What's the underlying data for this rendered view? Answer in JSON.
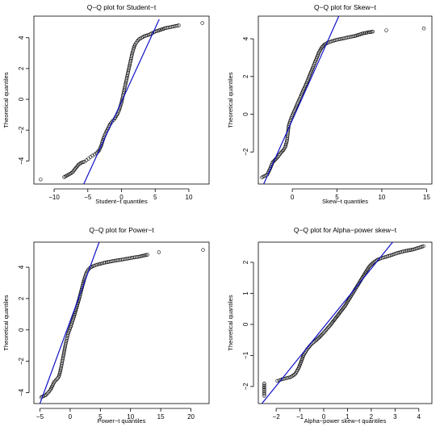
{
  "chart_data": [
    {
      "type": "scatter",
      "title": "Q−Q plot for  Student−t",
      "xlabel": "Student−t quantiles",
      "ylabel": "Theoretical quantiles",
      "xlim": [
        -13,
        13
      ],
      "ylim": [
        -5.5,
        5.4
      ],
      "xticks": [
        -10,
        -5,
        0,
        5,
        10
      ],
      "yticks": [
        -4,
        -2,
        0,
        2,
        4
      ],
      "xtick_labels": [
        "−10",
        "−5",
        "0",
        "5",
        "10"
      ],
      "ytick_labels": [
        "−4",
        "−2",
        "0",
        "2",
        "4"
      ],
      "reference_line": {
        "x": [
          -5.6,
          5.6
        ],
        "y": [
          -5.5,
          5.2
        ]
      },
      "points": [
        [
          -12,
          -5.2
        ],
        [
          -8.5,
          -5.05
        ],
        [
          -7.3,
          -4.75
        ],
        [
          -6.4,
          -4.25
        ],
        [
          -5.9,
          -4.1
        ],
        [
          -5.5,
          -4.05
        ],
        [
          -5.2,
          -3.95
        ],
        [
          -4.9,
          -3.85
        ],
        [
          -4.6,
          -3.75
        ],
        [
          -4.3,
          -3.65
        ],
        [
          -4.0,
          -3.58
        ],
        [
          -3.7,
          -3.5
        ],
        [
          -3.3,
          -3.3
        ],
        [
          -3.0,
          -3.0
        ],
        [
          -2.8,
          -2.7
        ],
        [
          -2.6,
          -2.45
        ],
        [
          -2.4,
          -2.25
        ],
        [
          -2.2,
          -2.05
        ],
        [
          -2.0,
          -1.9
        ],
        [
          -1.8,
          -1.7
        ],
        [
          -1.6,
          -1.55
        ],
        [
          -1.4,
          -1.45
        ],
        [
          -1.2,
          -1.35
        ],
        [
          -1.0,
          -1.25
        ],
        [
          -0.8,
          -1.1
        ],
        [
          -0.6,
          -0.95
        ],
        [
          -0.4,
          -0.75
        ],
        [
          -0.2,
          -0.5
        ],
        [
          0.0,
          -0.2
        ],
        [
          0.2,
          0.2
        ],
        [
          0.4,
          0.6
        ],
        [
          0.6,
          1.0
        ],
        [
          0.8,
          1.4
        ],
        [
          1.0,
          1.8
        ],
        [
          1.2,
          2.2
        ],
        [
          1.4,
          2.6
        ],
        [
          1.6,
          3.0
        ],
        [
          1.8,
          3.3
        ],
        [
          2.0,
          3.55
        ],
        [
          2.3,
          3.75
        ],
        [
          2.6,
          3.9
        ],
        [
          3.0,
          4.0
        ],
        [
          3.4,
          4.1
        ],
        [
          3.8,
          4.15
        ],
        [
          4.2,
          4.22
        ],
        [
          4.6,
          4.3
        ],
        [
          5.0,
          4.4
        ],
        [
          5.4,
          4.45
        ],
        [
          6.5,
          4.62
        ],
        [
          7.2,
          4.68
        ],
        [
          8.5,
          4.8
        ],
        [
          12.0,
          4.95
        ]
      ]
    },
    {
      "type": "scatter",
      "title": "Q−Q plot for  Skew−t",
      "xlabel": "Skew−t quantiles",
      "ylabel": "Theoretical quantiles",
      "xlim": [
        -3.8,
        15.6
      ],
      "ylim": [
        -3.7,
        5.2
      ],
      "xticks": [
        0,
        5,
        10,
        15
      ],
      "yticks": [
        -2,
        0,
        2,
        4
      ],
      "xtick_labels": [
        "0",
        "5",
        "10",
        "15"
      ],
      "ytick_labels": [
        "−2",
        "0",
        "2",
        "4"
      ],
      "reference_line": {
        "x": [
          -3.2,
          5.2
        ],
        "y": [
          -3.7,
          5.2
        ]
      },
      "points": [
        [
          -3.4,
          -3.35
        ],
        [
          -2.8,
          -3.2
        ],
        [
          -2.5,
          -2.9
        ],
        [
          -2.2,
          -2.55
        ],
        [
          -1.9,
          -2.4
        ],
        [
          -1.6,
          -2.25
        ],
        [
          -1.3,
          -2.05
        ],
        [
          -1.0,
          -1.9
        ],
        [
          -0.8,
          -1.75
        ],
        [
          -0.6,
          -1.4
        ],
        [
          -0.5,
          -1.0
        ],
        [
          -0.4,
          -0.6
        ],
        [
          -0.2,
          -0.3
        ],
        [
          0.0,
          -0.05
        ],
        [
          0.3,
          0.25
        ],
        [
          0.6,
          0.6
        ],
        [
          0.9,
          0.9
        ],
        [
          1.2,
          1.25
        ],
        [
          1.5,
          1.55
        ],
        [
          1.8,
          1.9
        ],
        [
          2.1,
          2.25
        ],
        [
          2.4,
          2.6
        ],
        [
          2.7,
          2.95
        ],
        [
          3.0,
          3.3
        ],
        [
          3.3,
          3.55
        ],
        [
          3.6,
          3.7
        ],
        [
          4.0,
          3.8
        ],
        [
          4.5,
          3.88
        ],
        [
          5.0,
          3.95
        ],
        [
          5.5,
          4.0
        ],
        [
          6.0,
          4.05
        ],
        [
          6.5,
          4.1
        ],
        [
          7.0,
          4.15
        ],
        [
          8.0,
          4.3
        ],
        [
          9.0,
          4.38
        ],
        [
          10.5,
          4.45
        ],
        [
          14.7,
          4.55
        ]
      ]
    },
    {
      "type": "scatter",
      "title": "Q−Q plot for  Power−t",
      "xlabel": "Power−t quantiles",
      "ylabel": "Theoretical quantiles",
      "xlim": [
        -6,
        23
      ],
      "ylim": [
        -4.7,
        5.6
      ],
      "xticks": [
        -5,
        0,
        5,
        10,
        15,
        20
      ],
      "yticks": [
        -4,
        -2,
        0,
        2,
        4
      ],
      "xtick_labels": [
        "−5",
        "0",
        "5",
        "10",
        "15",
        "20"
      ],
      "ytick_labels": [
        "−4",
        "−2",
        "0",
        "2",
        "4"
      ],
      "reference_line": {
        "x": [
          -5.0,
          4.8
        ],
        "y": [
          -4.7,
          5.6
        ]
      },
      "points": [
        [
          -4.8,
          -4.3
        ],
        [
          -4.0,
          -4.15
        ],
        [
          -3.3,
          -3.85
        ],
        [
          -2.6,
          -3.3
        ],
        [
          -2.2,
          -3.15
        ],
        [
          -1.9,
          -3.0
        ],
        [
          -1.7,
          -2.75
        ],
        [
          -1.5,
          -2.4
        ],
        [
          -1.3,
          -2.0
        ],
        [
          -1.1,
          -1.6
        ],
        [
          -0.9,
          -1.2
        ],
        [
          -0.7,
          -0.8
        ],
        [
          -0.5,
          -0.5
        ],
        [
          -0.3,
          -0.2
        ],
        [
          0.0,
          0.1
        ],
        [
          0.3,
          0.45
        ],
        [
          0.6,
          0.8
        ],
        [
          0.9,
          1.2
        ],
        [
          1.2,
          1.6
        ],
        [
          1.5,
          2.0
        ],
        [
          1.8,
          2.45
        ],
        [
          2.1,
          2.9
        ],
        [
          2.4,
          3.3
        ],
        [
          2.7,
          3.65
        ],
        [
          3.0,
          3.85
        ],
        [
          3.4,
          4.0
        ],
        [
          4.0,
          4.1
        ],
        [
          4.8,
          4.2
        ],
        [
          5.6,
          4.28
        ],
        [
          6.5,
          4.35
        ],
        [
          7.5,
          4.42
        ],
        [
          8.5,
          4.48
        ],
        [
          9.5,
          4.55
        ],
        [
          10.5,
          4.62
        ],
        [
          11.5,
          4.68
        ],
        [
          12.8,
          4.8
        ],
        [
          14.7,
          4.95
        ],
        [
          22.0,
          5.1
        ]
      ]
    },
    {
      "type": "scatter",
      "title": "Q−Q plot for  Alpha−power skew−t",
      "xlabel": "Alpha−power skew−t quantiles",
      "ylabel": "Theoretical quantiles",
      "xlim": [
        -2.75,
        4.55
      ],
      "ylim": [
        -2.55,
        2.65
      ],
      "xticks": [
        -2,
        -1,
        0,
        1,
        2,
        3,
        4
      ],
      "yticks": [
        -2,
        -1,
        0,
        1,
        2
      ],
      "xtick_labels": [
        "−2",
        "−1",
        "0",
        "1",
        "2",
        "3",
        "4"
      ],
      "ytick_labels": [
        "−2",
        "−1",
        "0",
        "1",
        "2"
      ],
      "reference_line": {
        "x": [
          -2.6,
          2.9
        ],
        "y": [
          -2.55,
          2.65
        ]
      },
      "points": [
        [
          -2.5,
          -2.3
        ],
        [
          -2.5,
          -2.2
        ],
        [
          -2.5,
          -1.9
        ],
        [
          -1.95,
          -1.82
        ],
        [
          -1.8,
          -1.78
        ],
        [
          -1.6,
          -1.74
        ],
        [
          -1.4,
          -1.7
        ],
        [
          -1.2,
          -1.6
        ],
        [
          -1.05,
          -1.4
        ],
        [
          -0.95,
          -1.2
        ],
        [
          -0.85,
          -1.0
        ],
        [
          -0.7,
          -0.8
        ],
        [
          -0.5,
          -0.62
        ],
        [
          -0.3,
          -0.5
        ],
        [
          -0.1,
          -0.35
        ],
        [
          0.1,
          -0.18
        ],
        [
          0.3,
          0.0
        ],
        [
          0.5,
          0.2
        ],
        [
          0.7,
          0.4
        ],
        [
          0.9,
          0.6
        ],
        [
          1.1,
          0.85
        ],
        [
          1.3,
          1.1
        ],
        [
          1.5,
          1.35
        ],
        [
          1.7,
          1.6
        ],
        [
          1.9,
          1.85
        ],
        [
          2.1,
          2.0
        ],
        [
          2.3,
          2.1
        ],
        [
          2.5,
          2.15
        ],
        [
          2.8,
          2.22
        ],
        [
          3.1,
          2.3
        ],
        [
          3.4,
          2.36
        ],
        [
          3.8,
          2.42
        ],
        [
          4.2,
          2.52
        ]
      ]
    }
  ]
}
